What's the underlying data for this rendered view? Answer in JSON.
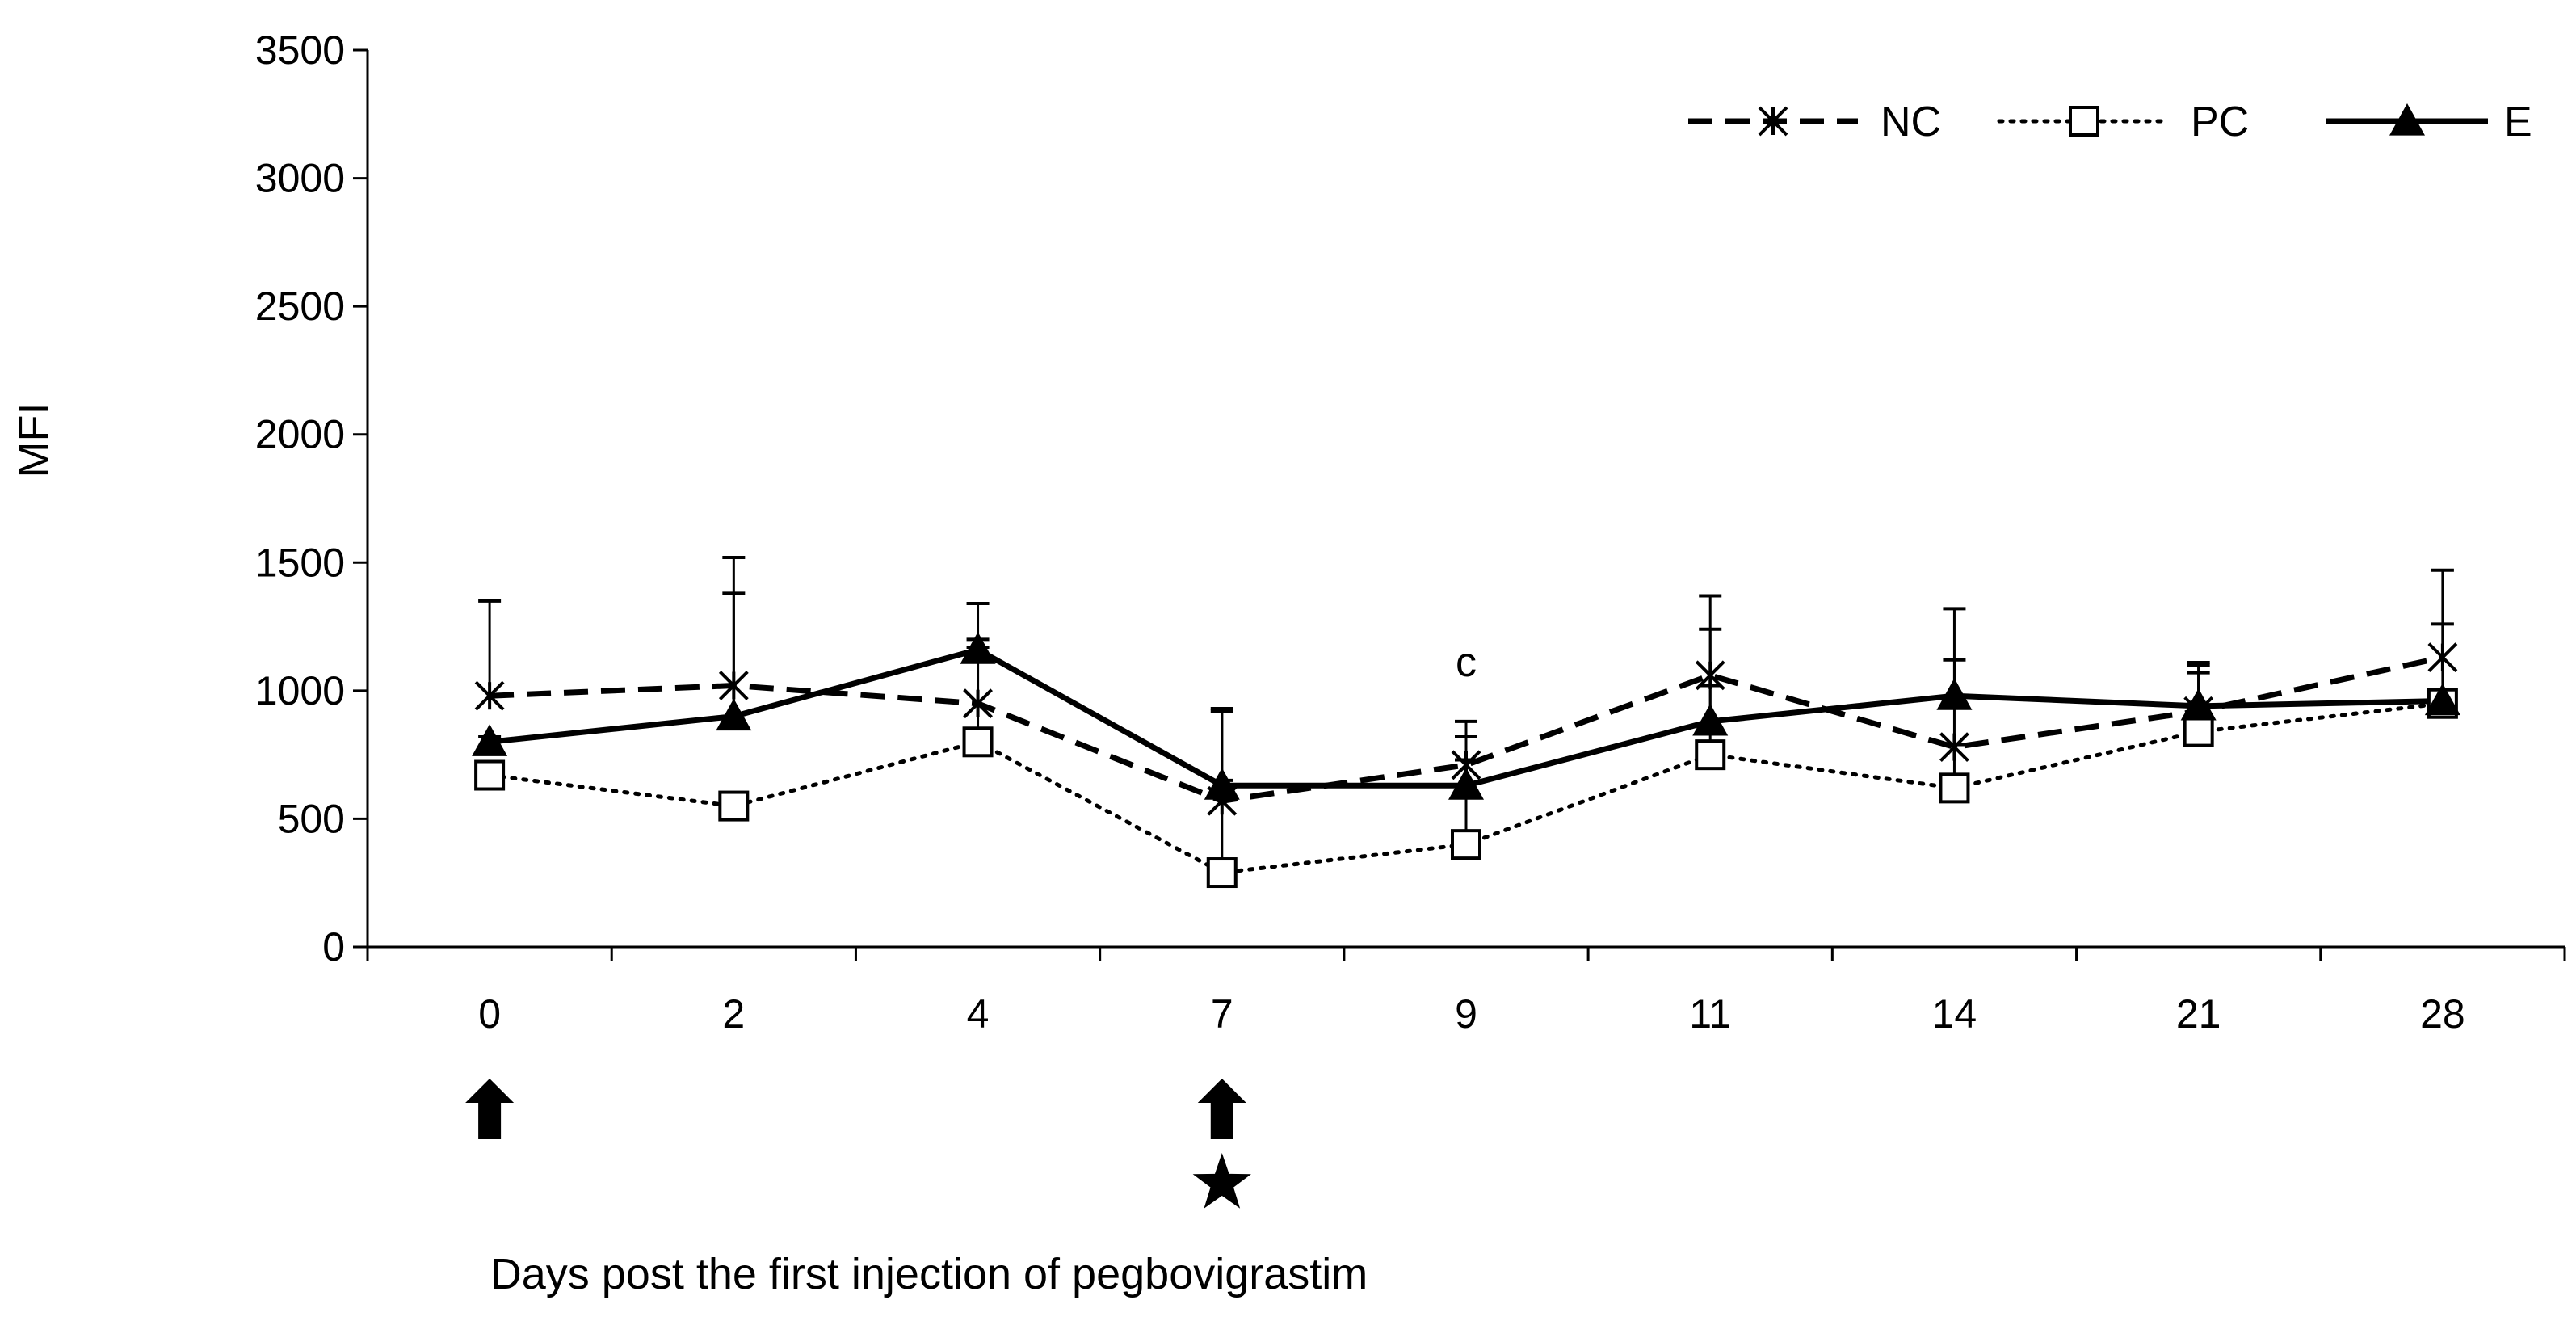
{
  "chart_data": {
    "type": "line",
    "title": "",
    "xlabel": "Days post the first injection of pegbovigrastim",
    "ylabel": "MFI",
    "categories": [
      "0",
      "2",
      "4",
      "7",
      "9",
      "11",
      "14",
      "21",
      "28"
    ],
    "ylim": [
      0,
      3500
    ],
    "yticks": [
      0,
      500,
      1000,
      1500,
      2000,
      2500,
      3000,
      3500
    ],
    "ytick_labels": [
      "0",
      "500",
      "1000",
      "1500",
      "2000",
      "2500",
      "3000",
      "3500"
    ],
    "grid": false,
    "legend_position": "top-right",
    "series": [
      {
        "name": "NC",
        "line_style": "dashed",
        "marker": "asterisk",
        "values": [
          980,
          1020,
          950,
          570,
          710,
          1060,
          780,
          920,
          1130
        ],
        "error_upper": [
          1350,
          1380,
          1200,
          930,
          880,
          1240,
          1120,
          1110,
          1260
        ]
      },
      {
        "name": "PC",
        "line_style": "dotted",
        "marker": "open-square",
        "values": [
          670,
          550,
          800,
          290,
          400,
          750,
          620,
          840,
          950
        ],
        "error_upper": [
          690,
          580,
          1170,
          650,
          730,
          1020,
          790,
          1100,
          970
        ]
      },
      {
        "name": "E",
        "line_style": "solid",
        "marker": "filled-triangle",
        "values": [
          800,
          900,
          1160,
          630,
          630,
          880,
          980,
          940,
          960
        ],
        "error_upper": [
          820,
          1520,
          1340,
          920,
          820,
          1370,
          1320,
          1070,
          1470
        ]
      }
    ],
    "annotations": [
      {
        "text": "c",
        "category": "9"
      }
    ],
    "injection_markers": [
      "0",
      "7"
    ],
    "star_marker": "7"
  },
  "colors": {
    "line": "#000000",
    "background": "#ffffff"
  },
  "icons": {
    "injection": "up-arrow-icon",
    "star": "star-icon"
  }
}
